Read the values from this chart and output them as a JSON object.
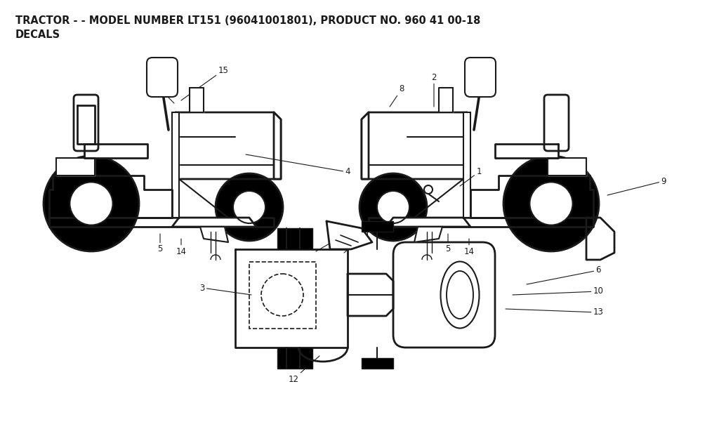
{
  "title_line1": "TRACTOR - - MODEL NUMBER LT151 (96041001801), PRODUCT NO. 960 41 00-18",
  "title_line2": "DECALS",
  "background_color": "#ffffff",
  "line_color": "#1a1a1a",
  "title_fontsize": 10.5,
  "label_fontsize": 8.5,
  "fig_width": 10.24,
  "fig_height": 6.31
}
